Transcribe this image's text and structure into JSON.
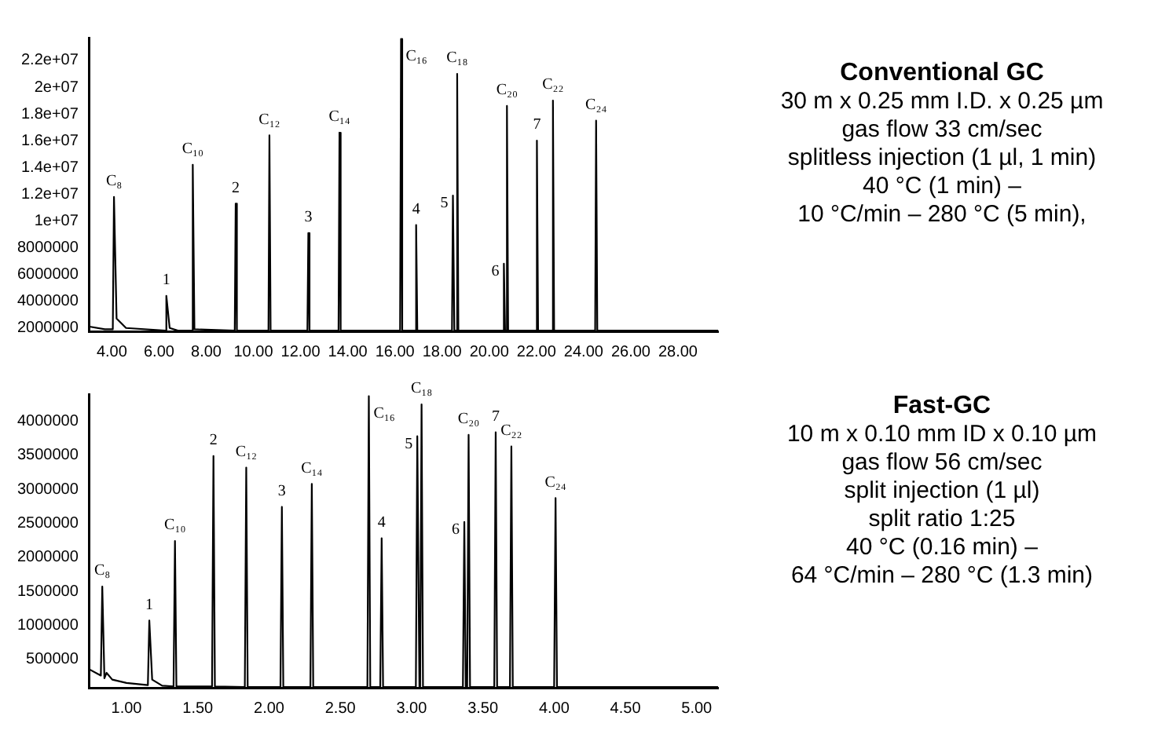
{
  "chart_data": [
    {
      "type": "line",
      "marker": "none",
      "line_style": "solid",
      "legend": false,
      "xlim": [
        3.05,
        29.7
      ],
      "ylim": [
        1750000,
        23700000
      ],
      "xticks": [
        {
          "value": 4,
          "label": "4.00"
        },
        {
          "value": 6,
          "label": "6.00"
        },
        {
          "value": 8,
          "label": "8.00"
        },
        {
          "value": 10,
          "label": "10.00"
        },
        {
          "value": 12,
          "label": "12.00"
        },
        {
          "value": 14,
          "label": "14.00"
        },
        {
          "value": 16,
          "label": "16.00"
        },
        {
          "value": 18,
          "label": "18.00"
        },
        {
          "value": 20,
          "label": "20.00"
        },
        {
          "value": 22,
          "label": "22.00"
        },
        {
          "value": 24,
          "label": "24.00"
        },
        {
          "value": 26,
          "label": "26.00"
        },
        {
          "value": 28,
          "label": "28.00"
        }
      ],
      "yticks": [
        2000000,
        4000000,
        6000000,
        8000000,
        {
          "value": 10000000,
          "label": "1e+07"
        },
        {
          "value": 12000000,
          "label": "1.2e+07"
        },
        {
          "value": 14000000,
          "label": "1.4e+07"
        },
        {
          "value": 16000000,
          "label": "1.6e+07"
        },
        {
          "value": 18000000,
          "label": "1.8e+07"
        },
        {
          "value": 20000000,
          "label": "2e+07"
        },
        {
          "value": 22000000,
          "label": "2.2e+07"
        }
      ],
      "series": [
        {
          "color": "#000000",
          "x": [
            3.05,
            3.7,
            4.04,
            4.09,
            4.2,
            4.6,
            6.27,
            6.31,
            6.45,
            6.8,
            7.39,
            7.43,
            7.5,
            9.21,
            9.25,
            9.3,
            10.64,
            10.68,
            10.73,
            12.29,
            12.33,
            12.38,
            13.61,
            13.65,
            13.7,
            16.22,
            16.26,
            16.31,
            16.86,
            16.9,
            16.95,
            18.42,
            18.46,
            18.52,
            18.6,
            18.64,
            18.69,
            20.58,
            20.62,
            20.67,
            20.71,
            20.75,
            20.8,
            21.98,
            22.02,
            22.07,
            22.66,
            22.7,
            22.75,
            24.49,
            24.53,
            24.58,
            29.7
          ],
          "values": [
            2100000,
            1900000,
            1900000,
            11800000,
            2700000,
            2000000,
            1800000,
            4400000,
            2000000,
            1800000,
            1800000,
            14200000,
            1900000,
            1800000,
            11300000,
            1800000,
            1800000,
            16400000,
            1800000,
            1800000,
            9100000,
            1800000,
            1800000,
            16600000,
            1800000,
            1800000,
            23600000,
            1800000,
            1800000,
            9700000,
            1800000,
            1800000,
            11900000,
            1800000,
            1800000,
            21000000,
            1800000,
            1800000,
            6800000,
            1800000,
            1800000,
            18600000,
            1800000,
            1800000,
            16000000,
            1800000,
            1800000,
            19000000,
            1800000,
            1800000,
            17500000,
            1800000,
            1800000
          ]
        }
      ],
      "annotations": [
        "Conventional GC",
        "30 m x 0.25 mm I.D. x 0.25 µm",
        "gas flow 33 cm/sec",
        "splitless injection (1 µl, 1 min)",
        "40 °C (1 min) –",
        "10 °C/min – 280 °C (5 min),",
        {
          "text": "C₈",
          "x": 4.09,
          "y": 11800000
        },
        {
          "text": "1",
          "x": 6.31,
          "y": 4400000
        },
        {
          "text": "C₁₀",
          "x": 7.43,
          "y": 14200000
        },
        {
          "text": "2",
          "x": 9.25,
          "y": 11300000
        },
        {
          "text": "C₁₂",
          "x": 10.68,
          "y": 16400000
        },
        {
          "text": "3",
          "x": 12.33,
          "y": 9100000
        },
        {
          "text": "C₁₄",
          "x": 13.65,
          "y": 16600000
        },
        {
          "text": "C₁₆",
          "x": 16.26,
          "y": 23600000
        },
        {
          "text": "4",
          "x": 16.9,
          "y": 9700000
        },
        {
          "text": "5",
          "x": 18.46,
          "y": 11900000
        },
        {
          "text": "C₁₈",
          "x": 18.64,
          "y": 21000000
        },
        {
          "text": "6",
          "x": 20.62,
          "y": 6800000
        },
        {
          "text": "C₂₀",
          "x": 20.75,
          "y": 18600000
        },
        {
          "text": "7",
          "x": 22.02,
          "y": 16000000
        },
        {
          "text": "C₂₂",
          "x": 22.7,
          "y": 19000000
        },
        {
          "text": "C₂₄",
          "x": 24.53,
          "y": 17500000
        }
      ]
    },
    {
      "type": "line",
      "marker": "none",
      "line_style": "solid",
      "legend": false,
      "xlim": [
        0.74,
        5.15
      ],
      "ylim": [
        80000,
        4400000
      ],
      "xticks": [
        {
          "value": 1,
          "label": "1.00"
        },
        {
          "value": 1.5,
          "label": "1.50"
        },
        {
          "value": 2,
          "label": "2.00"
        },
        {
          "value": 2.5,
          "label": "2.50"
        },
        {
          "value": 3,
          "label": "3.00"
        },
        {
          "value": 3.5,
          "label": "3.50"
        },
        {
          "value": 4,
          "label": "4.00"
        },
        {
          "value": 4.5,
          "label": "4.50"
        },
        {
          "value": 5,
          "label": "5.00"
        }
      ],
      "yticks": [
        500000,
        1000000,
        1500000,
        2000000,
        2500000,
        3000000,
        3500000,
        4000000
      ],
      "series": [
        {
          "color": "#000000",
          "x": [
            0.74,
            0.82,
            0.83,
            0.845,
            0.86,
            0.9,
            1.0,
            1.15,
            1.16,
            1.18,
            1.25,
            1.33,
            1.34,
            1.35,
            1.6,
            1.61,
            1.62,
            1.83,
            1.84,
            1.85,
            2.08,
            2.09,
            2.1,
            2.29,
            2.3,
            2.31,
            2.69,
            2.7,
            2.71,
            2.78,
            2.79,
            2.8,
            3.03,
            3.04,
            3.055,
            3.06,
            3.07,
            3.08,
            3.36,
            3.37,
            3.38,
            3.39,
            3.4,
            3.41,
            3.58,
            3.59,
            3.6,
            3.69,
            3.7,
            3.71,
            4.0,
            4.01,
            4.02,
            5.15
          ],
          "values": [
            350000,
            260000,
            1570000,
            220000,
            300000,
            200000,
            150000,
            120000,
            1070000,
            200000,
            110000,
            100000,
            2240000,
            100000,
            100000,
            3490000,
            100000,
            90000,
            3320000,
            90000,
            90000,
            2740000,
            90000,
            90000,
            3080000,
            90000,
            90000,
            4370000,
            90000,
            90000,
            2280000,
            90000,
            90000,
            3780000,
            90000,
            90000,
            4250000,
            90000,
            90000,
            2520000,
            90000,
            90000,
            3800000,
            90000,
            90000,
            3840000,
            90000,
            90000,
            3630000,
            90000,
            90000,
            2870000,
            90000,
            90000
          ]
        }
      ],
      "annotations": [
        "Fast-GC",
        "10 m x 0.10 mm ID x 0.10 µm",
        "gas flow 56 cm/sec",
        "split injection (1 µl)",
        "split ratio 1:25",
        "40 °C (0.16 min) –",
        "64 °C/min – 280 °C (1.3 min)",
        {
          "text": "C₈",
          "x": 0.83,
          "y": 1570000
        },
        {
          "text": "1",
          "x": 1.16,
          "y": 1070000
        },
        {
          "text": "C₁₀",
          "x": 1.34,
          "y": 2240000
        },
        {
          "text": "2",
          "x": 1.61,
          "y": 3490000
        },
        {
          "text": "C₁₂",
          "x": 1.84,
          "y": 3320000
        },
        {
          "text": "3",
          "x": 2.09,
          "y": 2740000
        },
        {
          "text": "C₁₄",
          "x": 2.3,
          "y": 3080000
        },
        {
          "text": "C₁₆",
          "x": 2.7,
          "y": 4370000
        },
        {
          "text": "4",
          "x": 2.79,
          "y": 2280000
        },
        {
          "text": "5",
          "x": 3.04,
          "y": 3780000
        },
        {
          "text": "C₁₈",
          "x": 3.07,
          "y": 4250000
        },
        {
          "text": "6",
          "x": 3.37,
          "y": 2520000
        },
        {
          "text": "C₂₀",
          "x": 3.4,
          "y": 3800000
        },
        {
          "text": "7",
          "x": 3.59,
          "y": 3840000
        },
        {
          "text": "C₂₂",
          "x": 3.7,
          "y": 3630000
        },
        {
          "text": "C₂₄",
          "x": 4.01,
          "y": 2870000
        }
      ]
    }
  ]
}
